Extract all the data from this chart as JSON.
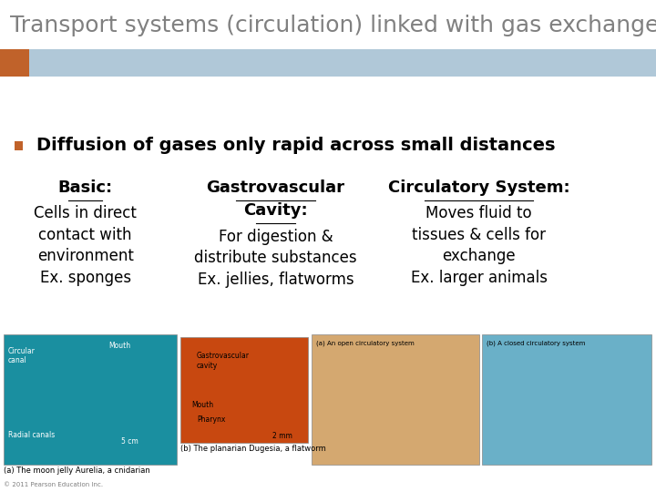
{
  "title": "Transport systems (circulation) linked with gas exchange (respiration)",
  "title_color": "#808080",
  "title_fontsize": 18,
  "accent_bar_color": "#c0622a",
  "header_bar_color": "#b0c8d8",
  "bullet_color": "#c0622a",
  "bullet_text": "Diffusion of gases only rapid across small distances",
  "bullet_fontsize": 14,
  "col1_header": "Basic:",
  "col1_body": "Cells in direct\ncontact with\nenvironment\nEx. sponges",
  "col2_header_line1": "Gastrovascular",
  "col2_header_line2": "Cavity:",
  "col2_body": "For digestion &\ndistribute substances\nEx. jellies, flatworms",
  "col3_header": "Circulatory System:",
  "col3_body": "Moves fluid to\ntissues & cells for\nexchange\nEx. larger animals",
  "col_fontsize": 12,
  "background_color": "#ffffff",
  "text_color": "#000000",
  "image_placeholder_colors": [
    "#1a8fa0",
    "#c84810",
    "#d4a870",
    "#6ab0c8"
  ],
  "footer_note": "© 2011 Pearson Education Inc."
}
